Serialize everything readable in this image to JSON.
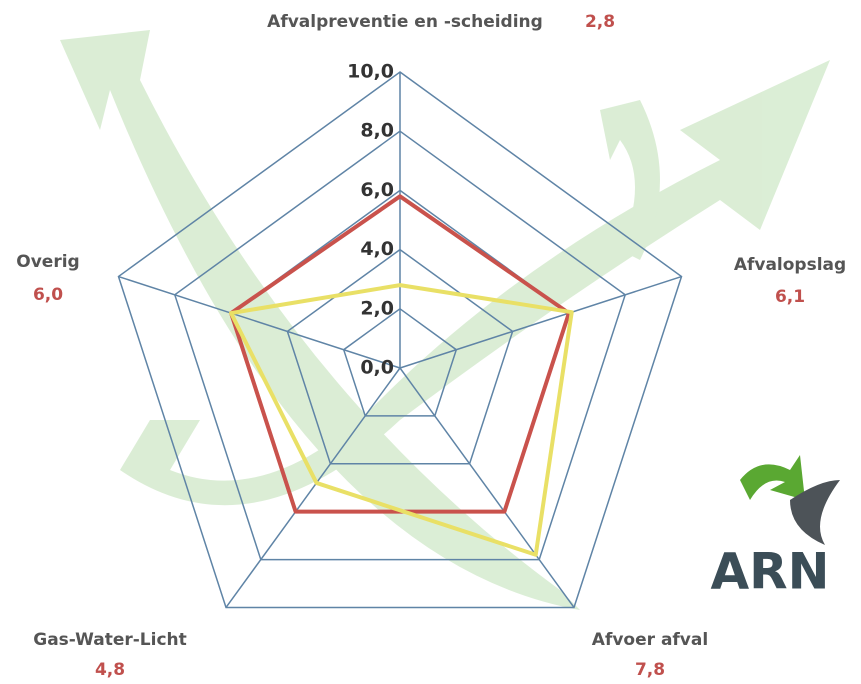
{
  "chart_data": {
    "type": "radar",
    "categories": [
      "Afvalpreventie en -scheiding",
      "Afvalopslag",
      "Afvoer afval",
      "Gas-Water-Licht",
      "Overig"
    ],
    "series": [
      {
        "color": "#c9524c",
        "values": [
          5.8,
          6.0,
          6.0,
          6.0,
          6.0
        ]
      },
      {
        "color": "#e9e066",
        "values": [
          2.8,
          6.1,
          7.8,
          4.8,
          6.0
        ],
        "value_labels": [
          "2,8",
          "6,1",
          "7,8",
          "4,8",
          "6,0"
        ]
      }
    ],
    "ylim": [
      0,
      10
    ],
    "yticks": [
      {
        "value": 0,
        "label": "0,0"
      },
      {
        "value": 2,
        "label": "2,0"
      },
      {
        "value": 4,
        "label": "4,0"
      },
      {
        "value": 6,
        "label": "6,0"
      },
      {
        "value": 8,
        "label": "8,0"
      },
      {
        "value": 10,
        "label": "10,0"
      }
    ],
    "grid": true,
    "grid_color": "#5f84a6",
    "logo": "ARN"
  }
}
